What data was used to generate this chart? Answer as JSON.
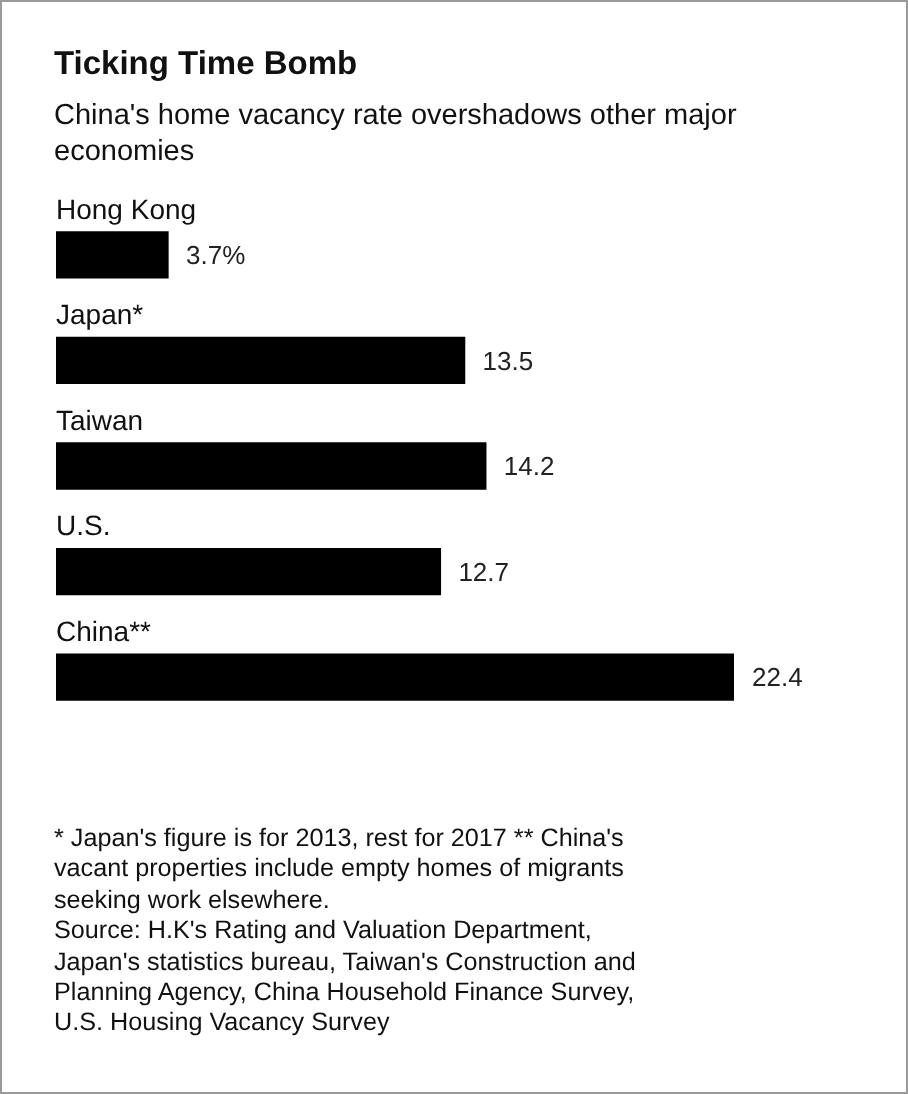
{
  "chart_data": {
    "type": "bar",
    "orientation": "horizontal",
    "title": "Ticking Time Bomb",
    "subtitle": "China's home vacancy rate overshadows other major economies",
    "categories": [
      "Hong Kong",
      "Japan*",
      "Taiwan",
      "U.S.",
      "China**"
    ],
    "values": [
      3.7,
      13.5,
      14.2,
      12.7,
      22.4
    ],
    "value_labels": [
      "3.7%",
      "13.5",
      "14.2",
      "12.7",
      "22.4"
    ],
    "color": "#000000",
    "annotations": [
      "* Japan's figure is for 2013, rest for 2017 ** China's vacant properties include empty homes of migrants seeking work elsewhere.",
      "Source: H.K's Rating and Valuation Department, Japan's statistics bureau, Taiwan's Construction and Planning Agency, China Household Finance Survey, U.S. Housing Vacancy Survey"
    ]
  }
}
